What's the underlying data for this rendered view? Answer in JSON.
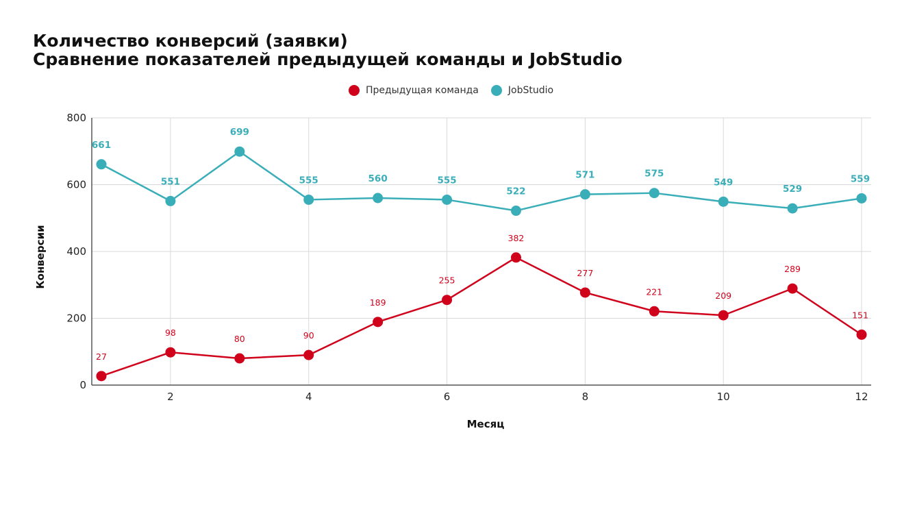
{
  "title_line1": "Количество конверсий (заявки)",
  "title_line2": "Сравнение показателей предыдущей команды и JobStudio",
  "chart_data": {
    "type": "line",
    "xlabel": "Месяц",
    "ylabel": "Конверсии",
    "x": [
      1,
      2,
      3,
      4,
      5,
      6,
      7,
      8,
      9,
      10,
      11,
      12
    ],
    "x_ticks": [
      2,
      4,
      6,
      8,
      10,
      12
    ],
    "xlim": [
      1,
      12
    ],
    "ylim": [
      0,
      800
    ],
    "y_ticks": [
      0,
      200,
      400,
      600,
      800
    ],
    "grid": true,
    "legend_position": "top-center",
    "series": [
      {
        "name": "Предыдущая команда",
        "color": "#d0021b",
        "values": [
          27,
          98,
          80,
          90,
          189,
          255,
          382,
          277,
          221,
          209,
          289,
          151
        ]
      },
      {
        "name": "JobStudio",
        "color": "#3aaeb8",
        "values": [
          661,
          551,
          699,
          555,
          560,
          555,
          522,
          571,
          575,
          549,
          529,
          559
        ]
      }
    ]
  }
}
